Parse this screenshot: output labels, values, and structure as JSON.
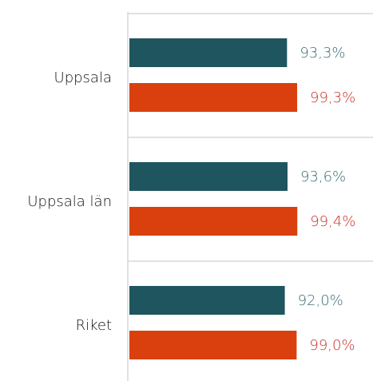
{
  "chart_data": {
    "type": "bar",
    "orientation": "horizontal",
    "categories": [
      "Uppsala",
      "Uppsala län",
      "Riket"
    ],
    "series": [
      {
        "color": "#1f555e",
        "label_color": "#3d6e75",
        "values": [
          93.3,
          93.6,
          92.0
        ],
        "value_labels": [
          "93,3%",
          "93,6%",
          "92,0%"
        ]
      },
      {
        "color": "#d9400e",
        "label_color": "#c8322b",
        "values": [
          99.3,
          99.4,
          99.0
        ],
        "value_labels": [
          "99,3%",
          "99,4%",
          "99,0%"
        ]
      }
    ],
    "xlim": [
      0,
      100
    ]
  }
}
